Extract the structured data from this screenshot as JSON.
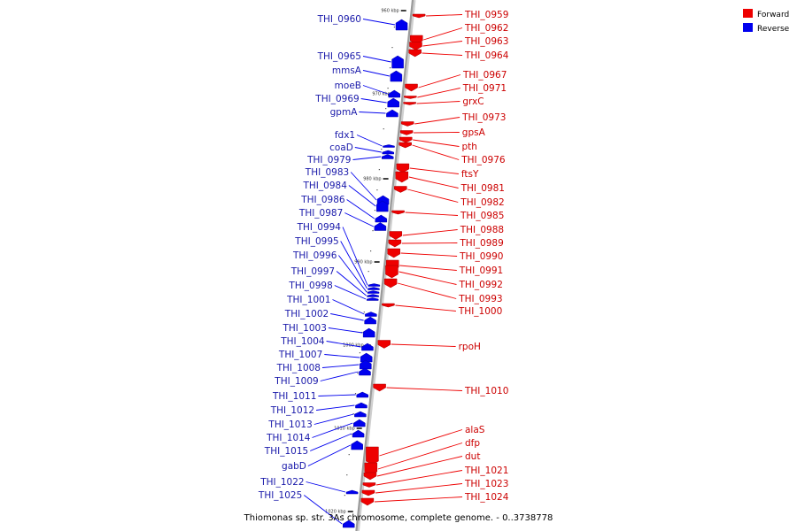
{
  "caption": "Thiomonas sp. str. 3As chromosome, complete genome. - 0..3738778",
  "legend": [
    {
      "label": "Forward",
      "color": "#ee0000"
    },
    {
      "label": "Reverse",
      "color": "#0000ee"
    }
  ],
  "colors": {
    "forward": "#ee0000",
    "reverse": "#0000ee",
    "backbone": "#9a9a9a"
  },
  "ticks": [
    "960 kbp",
    "970 kbp",
    "980 kbp",
    "990 kbp",
    "1000 kbp",
    "1010 kbp",
    "1020 kbp"
  ],
  "forward_genes": [
    "THI_0959",
    "THI_0962",
    "THI_0963",
    "THI_0964",
    "THI_0967",
    "THI_0971",
    "grxC",
    "THI_0973",
    "gpsA",
    "pth",
    "THI_0976",
    "ftsY",
    "THI_0981",
    "THI_0982",
    "THI_0985",
    "THI_0988",
    "THI_0989",
    "THI_0990",
    "THI_0991",
    "THI_0992",
    "THI_0993",
    "THI_1000",
    "rpoH",
    "THI_1010",
    "alaS",
    "dfp",
    "dut",
    "THI_1021",
    "THI_1023",
    "THI_1024"
  ],
  "reverse_genes": [
    "THI_0960",
    "THI_0965",
    "mmsA",
    "moeB",
    "THI_0969",
    "gpmA",
    "fdx1",
    "coaD",
    "THI_0979",
    "THI_0983",
    "THI_0984",
    "THI_0986",
    "THI_0987",
    "THI_0994",
    "THI_0995",
    "THI_0996",
    "THI_0997",
    "THI_0998",
    "THI_1001",
    "THI_1002",
    "THI_1003",
    "THI_1004",
    "THI_1007",
    "THI_1008",
    "THI_1009",
    "THI_1011",
    "THI_1012",
    "THI_1013",
    "THI_1014",
    "THI_1015",
    "gabD",
    "THI_1022",
    "THI_1025"
  ]
}
